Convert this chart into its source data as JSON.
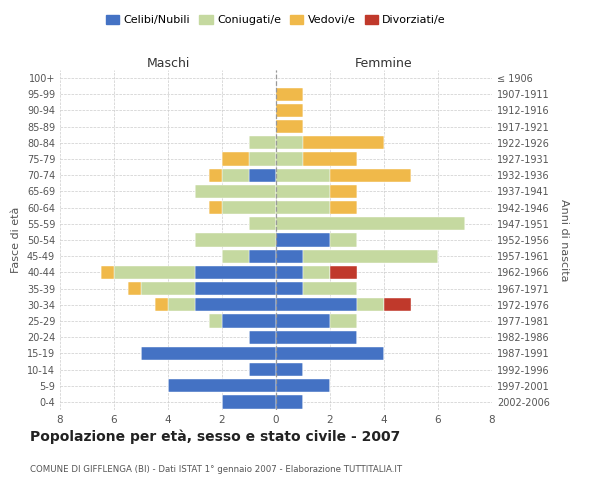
{
  "age_groups": [
    "0-4",
    "5-9",
    "10-14",
    "15-19",
    "20-24",
    "25-29",
    "30-34",
    "35-39",
    "40-44",
    "45-49",
    "50-54",
    "55-59",
    "60-64",
    "65-69",
    "70-74",
    "75-79",
    "80-84",
    "85-89",
    "90-94",
    "95-99",
    "100+"
  ],
  "birth_years": [
    "2002-2006",
    "1997-2001",
    "1992-1996",
    "1987-1991",
    "1982-1986",
    "1977-1981",
    "1972-1976",
    "1967-1971",
    "1962-1966",
    "1957-1961",
    "1952-1956",
    "1947-1951",
    "1942-1946",
    "1937-1941",
    "1932-1936",
    "1927-1931",
    "1922-1926",
    "1917-1921",
    "1912-1916",
    "1907-1911",
    "≤ 1906"
  ],
  "males": {
    "celibi": [
      2,
      4,
      1,
      5,
      1,
      2,
      3,
      3,
      3,
      1,
      0,
      0,
      0,
      0,
      1,
      0,
      0,
      0,
      0,
      0,
      0
    ],
    "coniugati": [
      0,
      0,
      0,
      0,
      0,
      0.5,
      1,
      2,
      3,
      1,
      3,
      1,
      2,
      3,
      1,
      1,
      1,
      0,
      0,
      0,
      0
    ],
    "vedovi": [
      0,
      0,
      0,
      0,
      0,
      0,
      0.5,
      0.5,
      0.5,
      0,
      0,
      0,
      0.5,
      0,
      0.5,
      1,
      0,
      0,
      0,
      0,
      0
    ],
    "divorziati": [
      0,
      0,
      0,
      0,
      0,
      0,
      0,
      0,
      0,
      0,
      0,
      0,
      0,
      0,
      0,
      0,
      0,
      0,
      0,
      0,
      0
    ]
  },
  "females": {
    "celibi": [
      1,
      2,
      1,
      4,
      3,
      2,
      3,
      1,
      1,
      1,
      2,
      0,
      0,
      0,
      0,
      0,
      0,
      0,
      0,
      0,
      0
    ],
    "coniugati": [
      0,
      0,
      0,
      0,
      0,
      1,
      1,
      2,
      1,
      5,
      1,
      7,
      2,
      2,
      2,
      1,
      1,
      0,
      0,
      0,
      0
    ],
    "vedovi": [
      0,
      0,
      0,
      0,
      0,
      0,
      0,
      0,
      0,
      0,
      0,
      0,
      1,
      1,
      3,
      2,
      3,
      1,
      1,
      1,
      0
    ],
    "divorziati": [
      0,
      0,
      0,
      0,
      0,
      0,
      1,
      0,
      1,
      0,
      0,
      0,
      0,
      0,
      0,
      0,
      0,
      0,
      0,
      0,
      0
    ]
  },
  "colors": {
    "celibi": "#4472c4",
    "coniugati": "#c5d9a0",
    "vedovi": "#f0b94a",
    "divorziati": "#c0392b"
  },
  "title": "Popolazione per età, sesso e stato civile - 2007",
  "subtitle": "COMUNE DI GIFFLENGA (BI) - Dati ISTAT 1° gennaio 2007 - Elaborazione TUTTITALIA.IT",
  "ylabel_left": "Fasce di età",
  "ylabel_right": "Anni di nascita",
  "xlim": 8,
  "background_color": "#ffffff",
  "grid_color": "#cccccc",
  "legend_labels": [
    "Celibi/Nubili",
    "Coniugati/e",
    "Vedovi/e",
    "Divorziati/e"
  ]
}
